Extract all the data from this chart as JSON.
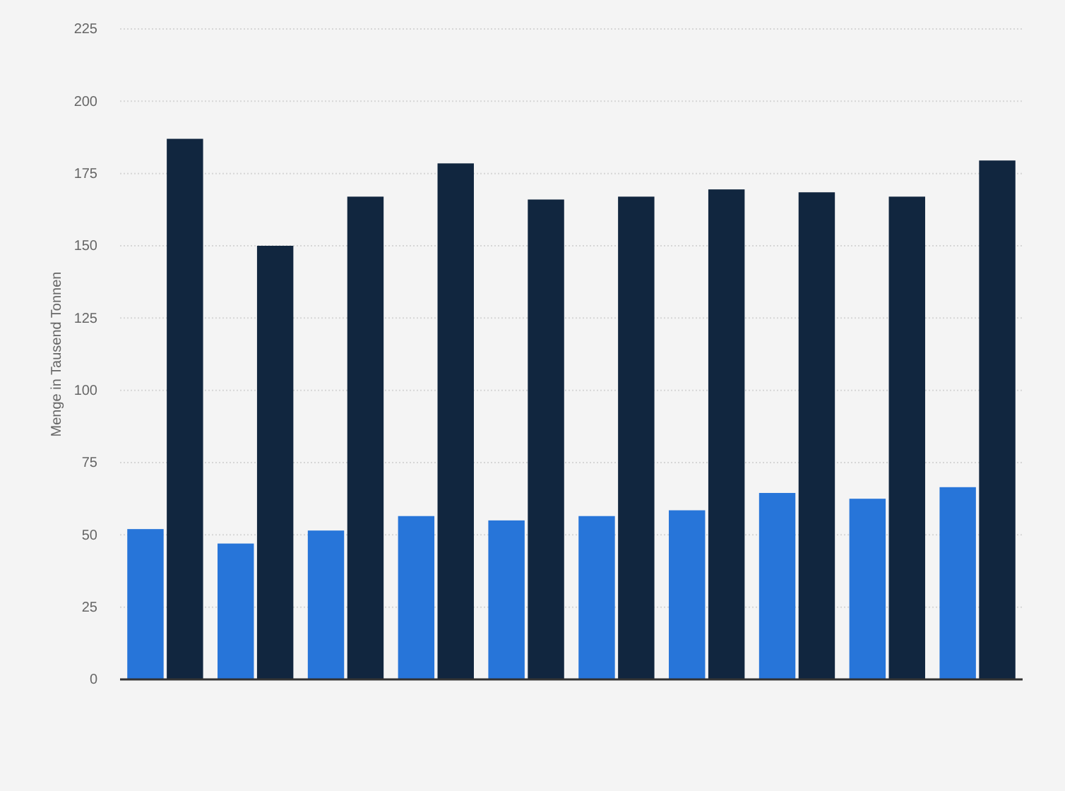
{
  "chart_data": {
    "type": "bar",
    "ylabel": "Menge in Tausend Tonnen",
    "categories": [
      null,
      null,
      null,
      null,
      null,
      null,
      null,
      null,
      null,
      null
    ],
    "series": [
      {
        "color": "#2775d9",
        "values": [
          52,
          47,
          51.5,
          56.5,
          55,
          56.5,
          58.5,
          64.5,
          62.5,
          66.5
        ]
      },
      {
        "color": "#11263f",
        "values": [
          187,
          150,
          167,
          178.5,
          166,
          167,
          169.5,
          168.5,
          167,
          179.5
        ]
      }
    ],
    "ylim": [
      0,
      225
    ],
    "yticks": [
      0,
      25,
      50,
      75,
      100,
      125,
      150,
      175,
      200,
      225
    ],
    "grid": "y"
  }
}
